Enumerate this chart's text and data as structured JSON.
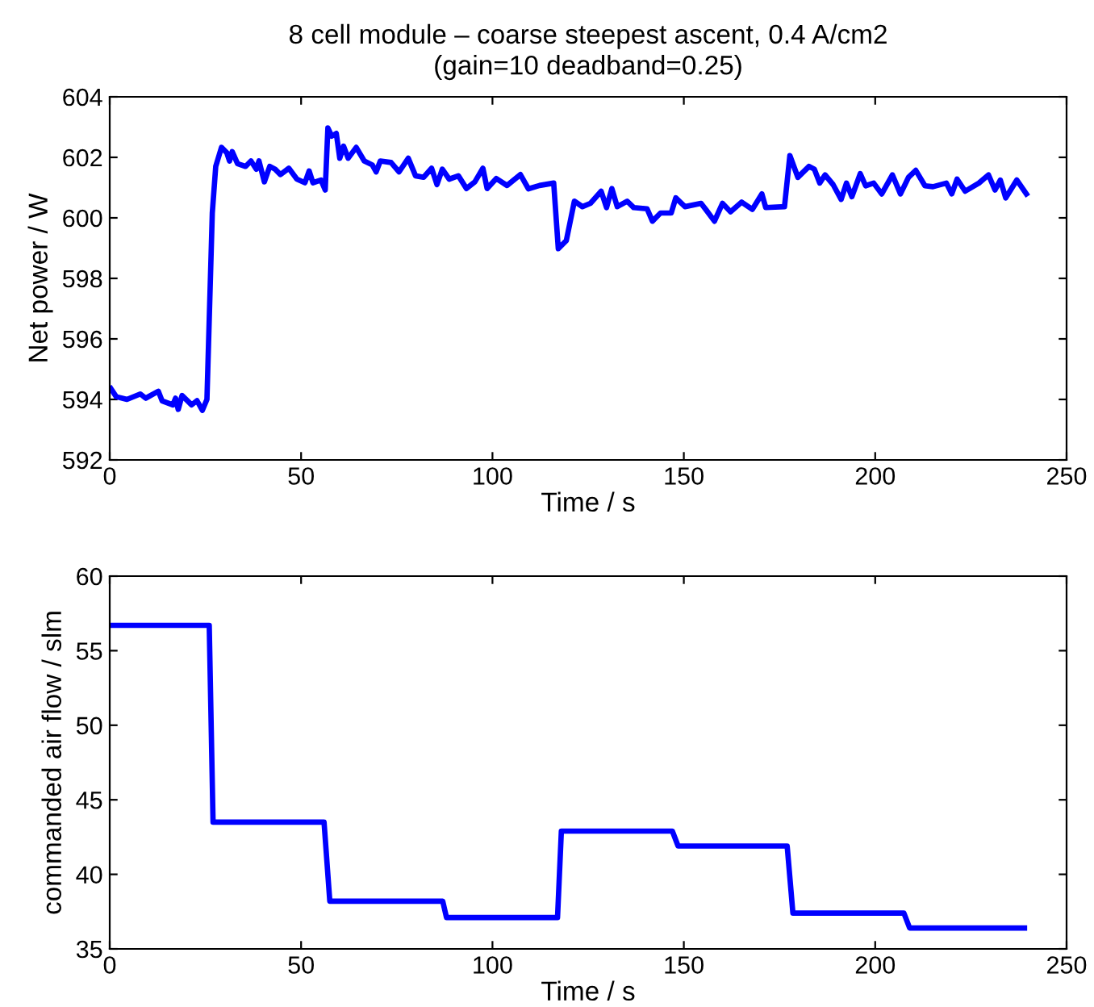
{
  "chart_data": [
    {
      "type": "line",
      "title": "8 cell module – coarse steepest ascent, 0.4 A/cm2\n(gain=10 deadband=0.25)",
      "xlabel": "Time / s",
      "ylabel": "Net power / W",
      "xlim": [
        0,
        250
      ],
      "xticks": [
        0,
        50,
        100,
        150,
        200,
        250
      ],
      "ylim": [
        592,
        604
      ],
      "yticks": [
        592,
        594,
        596,
        598,
        600,
        602,
        604
      ],
      "grid": false,
      "marker": "none",
      "line_style": "solid",
      "series": [
        {
          "color": "#0000ff",
          "x": [
            0.3,
            1.7,
            4.5,
            8,
            9.4,
            12.7,
            13.7,
            16.5,
            17.2,
            17.9,
            18.9,
            21.4,
            22.8,
            24.2,
            25.4,
            26.8,
            27.7,
            29.2,
            30.6,
            31.3,
            32,
            33.4,
            35.5,
            36.9,
            38.3,
            39,
            40.4,
            41.8,
            43.2,
            44.6,
            46.8,
            48.9,
            51,
            52.1,
            53.1,
            55.2,
            56.3,
            57,
            58,
            59.2,
            60.1,
            61.1,
            62.3,
            64.4,
            66.5,
            68.6,
            69.6,
            70.7,
            73.5,
            75.6,
            78,
            79.9,
            82,
            84.1,
            85.5,
            86.9,
            88.7,
            91.1,
            93.2,
            95.4,
            97.5,
            98.6,
            101,
            103.8,
            107.3,
            109.4,
            112.3,
            116.0,
            117.2,
            119.3,
            121.4,
            123.5,
            125.6,
            128.4,
            129.8,
            131.2,
            132.6,
            135.2,
            136.9,
            140.4,
            141.8,
            143.9,
            146.7,
            147.9,
            150.3,
            154.5,
            155.9,
            158.0,
            160.1,
            162.2,
            165.1,
            167.9,
            170.4,
            171.4,
            176.3,
            177.7,
            179.8,
            182.7,
            184.1,
            185.5,
            186.9,
            189.0,
            191.1,
            192.5,
            193.9,
            196.1,
            197.5,
            199.6,
            201.7,
            204.5,
            206.6,
            208.7,
            210.6,
            213.0,
            215.1,
            218.6,
            220.0,
            221.4,
            223.5,
            227.1,
            229.6,
            231.3,
            232.7,
            234.1,
            237.0,
            239.5
          ],
          "values": [
            594.36,
            594.09,
            594.0,
            594.18,
            594.04,
            594.27,
            593.95,
            593.82,
            594.04,
            593.67,
            594.13,
            593.82,
            593.96,
            593.64,
            594.0,
            600.16,
            601.7,
            602.33,
            602.15,
            601.88,
            602.19,
            601.79,
            601.7,
            601.88,
            601.61,
            601.88,
            601.19,
            601.7,
            601.61,
            601.43,
            601.64,
            601.28,
            601.16,
            601.55,
            601.16,
            601.25,
            600.92,
            602.97,
            602.7,
            602.79,
            601.97,
            602.37,
            601.97,
            602.33,
            601.88,
            601.75,
            601.52,
            601.88,
            601.83,
            601.52,
            601.97,
            601.39,
            601.34,
            601.64,
            601.1,
            601.61,
            601.28,
            601.39,
            600.97,
            601.19,
            601.64,
            600.97,
            601.3,
            601.07,
            601.43,
            600.96,
            601.07,
            601.15,
            598.98,
            599.25,
            600.55,
            600.37,
            600.48,
            600.88,
            600.34,
            600.97,
            600.37,
            600.55,
            600.34,
            600.3,
            599.89,
            600.16,
            600.16,
            600.66,
            600.37,
            600.48,
            600.25,
            599.89,
            600.48,
            600.2,
            600.52,
            600.28,
            600.79,
            600.34,
            600.37,
            602.06,
            601.34,
            601.7,
            601.61,
            601.15,
            601.42,
            601.1,
            600.61,
            601.15,
            600.7,
            601.46,
            601.06,
            601.15,
            600.79,
            601.42,
            600.79,
            601.34,
            601.57,
            601.06,
            601.03,
            601.15,
            600.79,
            601.28,
            600.88,
            601.15,
            601.42,
            600.92,
            601.25,
            600.66,
            601.25,
            600.79
          ]
        }
      ]
    },
    {
      "type": "line",
      "xlabel": "Time / s",
      "ylabel": "commanded air flow / slm",
      "xlim": [
        0,
        250
      ],
      "xticks": [
        0,
        50,
        100,
        150,
        200,
        250
      ],
      "ylim": [
        35,
        60
      ],
      "yticks": [
        35,
        40,
        45,
        50,
        55,
        60
      ],
      "grid": false,
      "marker": "none",
      "line_style": "solid",
      "series": [
        {
          "color": "#0000ff",
          "x": [
            0,
            26,
            27,
            56,
            57.5,
            87,
            88,
            117,
            118,
            147,
            148.5,
            177,
            178.5,
            207.5,
            209,
            239
          ],
          "values": [
            56.7,
            56.7,
            43.5,
            43.5,
            38.2,
            38.2,
            37.1,
            37.1,
            42.9,
            42.9,
            41.9,
            41.9,
            37.4,
            37.4,
            36.4,
            36.4
          ]
        }
      ]
    }
  ]
}
